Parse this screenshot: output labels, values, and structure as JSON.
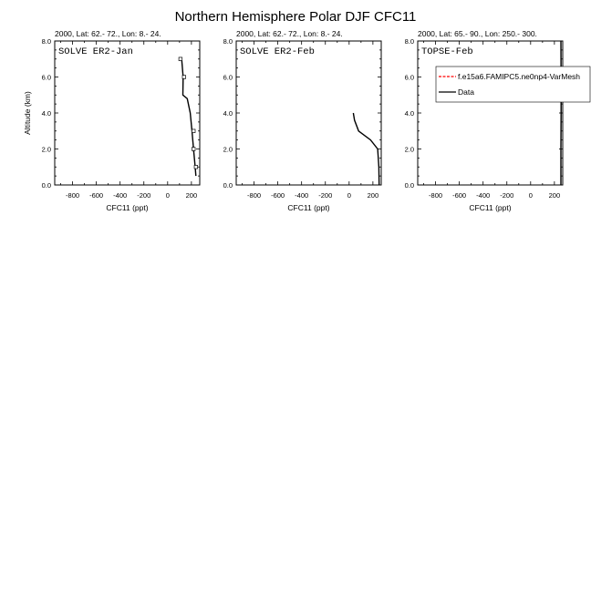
{
  "figure": {
    "title": "Northern Hemisphere Polar DJF CFC11"
  },
  "colors": {
    "model": "#ff0000",
    "data": "#000000",
    "axis": "#000000"
  },
  "legend": {
    "placement": "top-right of third panel",
    "entries": [
      {
        "label": "f.e15a6.FAMIPC5.ne0np4-VarMesh",
        "style": "dashed",
        "color": "#ff0000"
      },
      {
        "label": "Data",
        "style": "solid",
        "color": "#000000"
      }
    ]
  },
  "chart_data": [
    {
      "type": "line",
      "header": "2000, Lat: 62.- 72., Lon: 8.- 24.",
      "panel_label": "SOLVE ER2-Jan",
      "xlabel": "CFC11 (ppt)",
      "ylabel": "Altitude (km)",
      "xlim": [
        -950,
        270
      ],
      "ylim": [
        0,
        8
      ],
      "xticks": [
        -800,
        -600,
        -400,
        -200,
        0,
        200
      ],
      "yticks": [
        0,
        2,
        4,
        6,
        8
      ],
      "ytick_labels": [
        "0.0",
        "2.0",
        "4.0",
        "6.0",
        "8.0"
      ],
      "series": [
        {
          "name": "Data",
          "x": [
            238,
            232,
            218,
            205,
            190,
            165,
            128,
            130,
            118
          ],
          "y": [
            0.5,
            1.0,
            2.0,
            3.0,
            4.0,
            4.8,
            5.0,
            6.0,
            7.0
          ],
          "markers": [
            {
              "x": 238,
              "y": 1.0
            },
            {
              "x": 218,
              "y": 2.0
            },
            {
              "x": 218,
              "y": 3.0
            },
            {
              "x": 138,
              "y": 6.0
            },
            {
              "x": 108,
              "y": 7.0
            }
          ]
        }
      ]
    },
    {
      "type": "line",
      "header": "2000, Lat: 62.- 72., Lon: 8.- 24.",
      "panel_label": "SOLVE ER2-Feb",
      "xlabel": "CFC11 (ppt)",
      "ylabel": "",
      "xlim": [
        -950,
        270
      ],
      "ylim": [
        0,
        8
      ],
      "xticks": [
        -800,
        -600,
        -400,
        -200,
        0,
        200
      ],
      "yticks": [
        0,
        2,
        4,
        6,
        8
      ],
      "ytick_labels": [
        "0.0",
        "2.0",
        "4.0",
        "6.0",
        "8.0"
      ],
      "series": [
        {
          "name": "Data",
          "x": [
            252,
            250,
            240,
            180,
            80,
            45,
            35
          ],
          "y": [
            0.0,
            1.0,
            2.0,
            2.5,
            3.0,
            3.6,
            4.0
          ],
          "markers": []
        }
      ]
    },
    {
      "type": "line",
      "header": "2000, Lat: 65.- 90., Lon: 250.- 300.",
      "panel_label": "TOPSE-Feb",
      "xlabel": "CFC11 (ppt)",
      "ylabel": "",
      "xlim": [
        -950,
        270
      ],
      "ylim": [
        0,
        8
      ],
      "xticks": [
        -800,
        -600,
        -400,
        -200,
        0,
        200
      ],
      "yticks": [
        0,
        2,
        4,
        6,
        8
      ],
      "ytick_labels": [
        "0.0",
        "2.0",
        "4.0",
        "6.0",
        "8.0"
      ],
      "series": [
        {
          "name": "Data",
          "x": [
            255,
            255,
            256,
            256,
            255
          ],
          "y": [
            0.0,
            2.0,
            4.0,
            6.0,
            8.0
          ],
          "markers": []
        }
      ]
    }
  ]
}
